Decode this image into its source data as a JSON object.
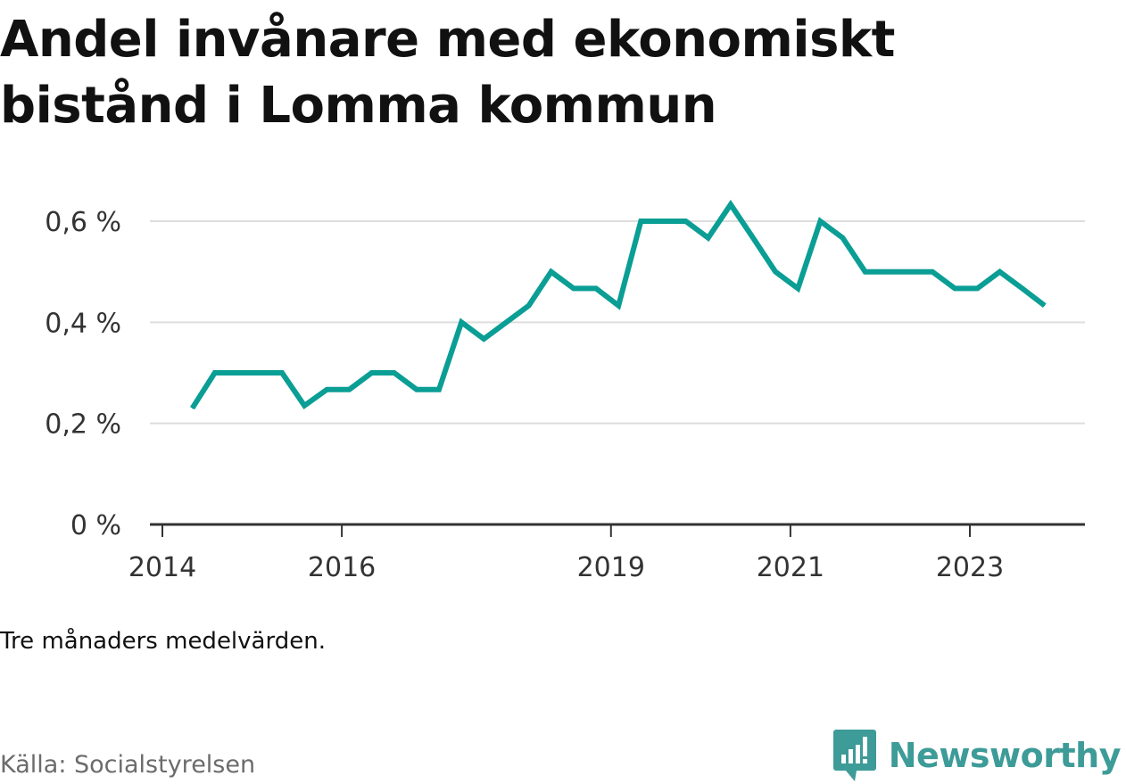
{
  "title_line1": "Andel invånare med ekonomiskt",
  "title_line2": "bistånd i Lomma kommun",
  "note": "Tre månaders medelvärden.",
  "source": "Källa: Socialstyrelsen",
  "brand": {
    "name": "Newsworthy",
    "icon": "chart-speech-bubble-icon",
    "color": "#3d9b98"
  },
  "colors": {
    "line": "#0a9e95",
    "grid": "#dddddd",
    "axis": "#333333"
  },
  "chart_data": {
    "type": "line",
    "title": "Andel invånare med ekonomiskt bistånd i Lomma kommun",
    "xlabel": "",
    "ylabel": "",
    "x_ticks": [
      "2014",
      "2016",
      "2019",
      "2021",
      "2023"
    ],
    "y_ticks": [
      "0 %",
      "0,2 %",
      "0,4 %",
      "0,6 %"
    ],
    "y_tick_values": [
      0,
      0.2,
      0.4,
      0.6
    ],
    "ylim": [
      0,
      0.6
    ],
    "grid": true,
    "series": [
      {
        "x": [
          "2014-05",
          "2014-08",
          "2014-11",
          "2015-02",
          "2015-05",
          "2015-08",
          "2015-11",
          "2016-02",
          "2016-05",
          "2016-08",
          "2016-11",
          "2017-02",
          "2017-05",
          "2017-08",
          "2017-11",
          "2018-02",
          "2018-05",
          "2018-08",
          "2018-11",
          "2019-02",
          "2019-05",
          "2019-08",
          "2019-11",
          "2020-02",
          "2020-05",
          "2020-08",
          "2020-11",
          "2021-02",
          "2021-05",
          "2021-08",
          "2021-11",
          "2022-02",
          "2022-05",
          "2022-08",
          "2022-11",
          "2023-02",
          "2023-05",
          "2023-08",
          "2023-11"
        ],
        "values": [
          0.23,
          0.3,
          0.3,
          0.3,
          0.3,
          0.235,
          0.267,
          0.267,
          0.3,
          0.3,
          0.267,
          0.267,
          0.4,
          0.367,
          0.4,
          0.433,
          0.5,
          0.467,
          0.467,
          0.433,
          0.6,
          0.6,
          0.6,
          0.567,
          0.633,
          0.567,
          0.5,
          0.467,
          0.6,
          0.567,
          0.5,
          0.5,
          0.5,
          0.5,
          0.467,
          0.467,
          0.5,
          0.467,
          0.433
        ]
      }
    ]
  }
}
